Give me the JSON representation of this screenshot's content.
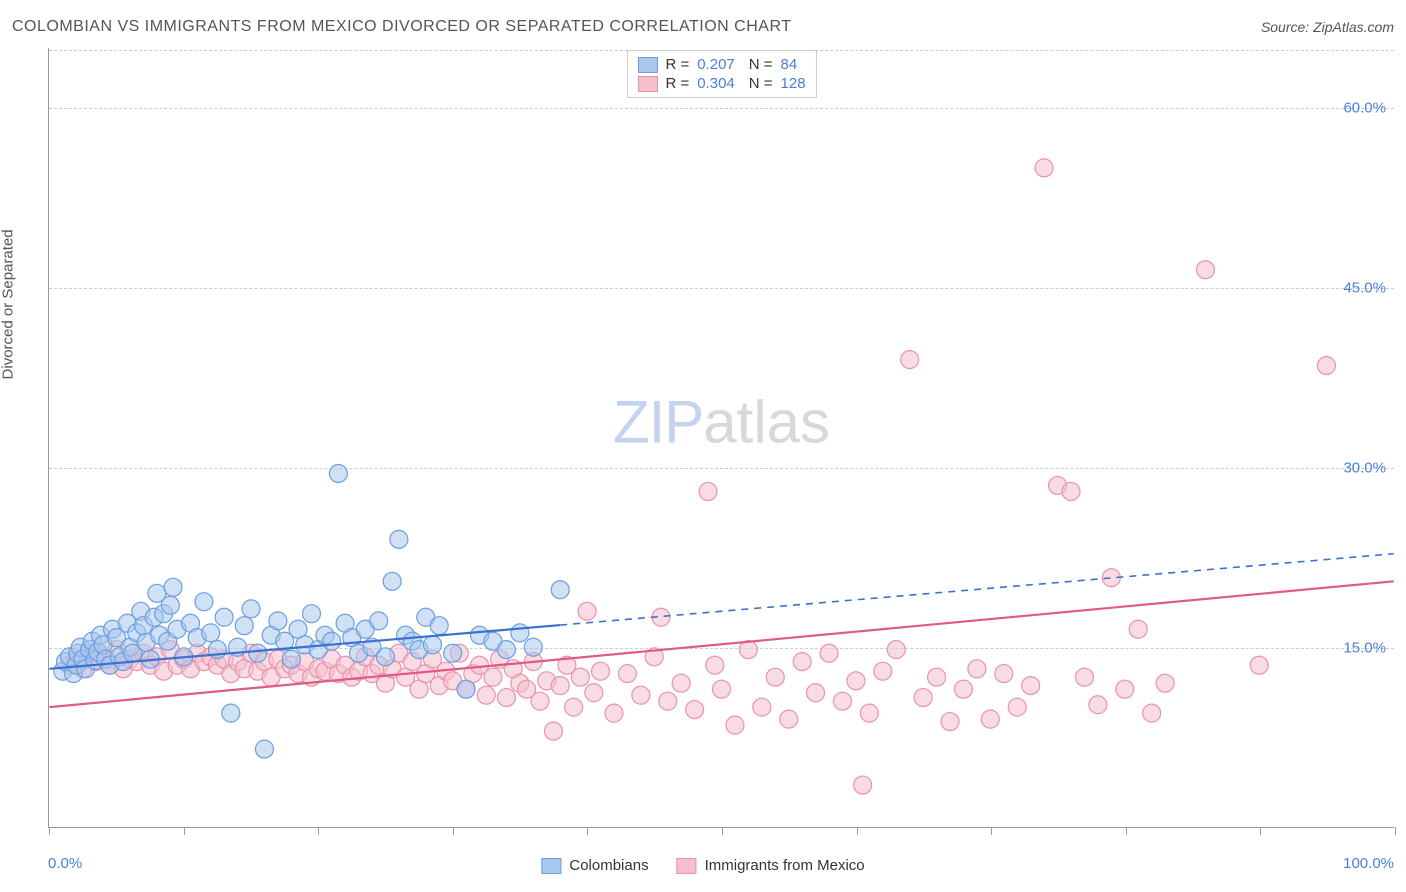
{
  "title": "COLOMBIAN VS IMMIGRANTS FROM MEXICO DIVORCED OR SEPARATED CORRELATION CHART",
  "source_label": "Source: ZipAtlas.com",
  "ylabel": "Divorced or Separated",
  "watermark_zip": "ZIP",
  "watermark_atlas": "atlas",
  "chart": {
    "type": "scatter",
    "xlim": [
      0,
      100
    ],
    "ylim": [
      0,
      65
    ],
    "xticks": [
      0,
      10,
      20,
      30,
      40,
      50,
      60,
      70,
      80,
      90,
      100
    ],
    "yticks": [
      15,
      30,
      45,
      60
    ],
    "ytick_labels": [
      "15.0%",
      "30.0%",
      "45.0%",
      "60.0%"
    ],
    "xaxis_left_label": "0.0%",
    "xaxis_right_label": "100.0%",
    "grid_color": "#cccccc",
    "axis_color": "#999999",
    "background_color": "#ffffff"
  },
  "series": {
    "colombians": {
      "label": "Colombians",
      "marker_fill": "#a9c6ec",
      "marker_stroke": "#6a9fe0",
      "marker_fill_opacity": 0.55,
      "marker_radius": 9,
      "line_color": "#3b6fd0",
      "line_width": 2.2,
      "line_solid_xmax": 38,
      "trend_start_y": 13.2,
      "trend_end_y": 22.8,
      "R": "0.207",
      "N": "84",
      "points": [
        [
          1.0,
          13.0
        ],
        [
          1.2,
          13.8
        ],
        [
          1.5,
          14.2
        ],
        [
          1.8,
          12.8
        ],
        [
          2.0,
          13.5
        ],
        [
          2.1,
          14.5
        ],
        [
          2.3,
          15.0
        ],
        [
          2.5,
          14.0
        ],
        [
          2.7,
          13.2
        ],
        [
          3.0,
          14.8
        ],
        [
          3.2,
          15.5
        ],
        [
          3.4,
          13.9
        ],
        [
          3.6,
          14.6
        ],
        [
          3.8,
          16.0
        ],
        [
          4.0,
          15.2
        ],
        [
          4.2,
          14.0
        ],
        [
          4.5,
          13.5
        ],
        [
          4.7,
          16.5
        ],
        [
          5.0,
          15.8
        ],
        [
          5.2,
          14.2
        ],
        [
          5.5,
          13.8
        ],
        [
          5.8,
          17.0
        ],
        [
          6.0,
          15.0
        ],
        [
          6.2,
          14.5
        ],
        [
          6.5,
          16.2
        ],
        [
          6.8,
          18.0
        ],
        [
          7.0,
          16.8
        ],
        [
          7.2,
          15.4
        ],
        [
          7.5,
          14.0
        ],
        [
          7.8,
          17.5
        ],
        [
          8.0,
          19.5
        ],
        [
          8.2,
          16.0
        ],
        [
          8.5,
          17.8
        ],
        [
          8.8,
          15.5
        ],
        [
          9.0,
          18.5
        ],
        [
          9.2,
          20.0
        ],
        [
          9.5,
          16.5
        ],
        [
          10.0,
          14.2
        ],
        [
          10.5,
          17.0
        ],
        [
          11.0,
          15.8
        ],
        [
          11.5,
          18.8
        ],
        [
          12.0,
          16.2
        ],
        [
          12.5,
          14.8
        ],
        [
          13.0,
          17.5
        ],
        [
          13.5,
          9.5
        ],
        [
          14.0,
          15.0
        ],
        [
          14.5,
          16.8
        ],
        [
          15.0,
          18.2
        ],
        [
          15.5,
          14.5
        ],
        [
          16.0,
          6.5
        ],
        [
          16.5,
          16.0
        ],
        [
          17.0,
          17.2
        ],
        [
          17.5,
          15.5
        ],
        [
          18.0,
          14.0
        ],
        [
          18.5,
          16.5
        ],
        [
          19.0,
          15.2
        ],
        [
          19.5,
          17.8
        ],
        [
          20.0,
          14.8
        ],
        [
          20.5,
          16.0
        ],
        [
          21.0,
          15.5
        ],
        [
          21.5,
          29.5
        ],
        [
          22.0,
          17.0
        ],
        [
          22.5,
          15.8
        ],
        [
          23.0,
          14.5
        ],
        [
          23.5,
          16.5
        ],
        [
          24.0,
          15.0
        ],
        [
          24.5,
          17.2
        ],
        [
          25.0,
          14.2
        ],
        [
          25.5,
          20.5
        ],
        [
          26.0,
          24.0
        ],
        [
          26.5,
          16.0
        ],
        [
          27.0,
          15.5
        ],
        [
          27.5,
          14.8
        ],
        [
          28.0,
          17.5
        ],
        [
          28.5,
          15.2
        ],
        [
          29.0,
          16.8
        ],
        [
          30.0,
          14.5
        ],
        [
          31.0,
          11.5
        ],
        [
          32.0,
          16.0
        ],
        [
          33.0,
          15.5
        ],
        [
          34.0,
          14.8
        ],
        [
          35.0,
          16.2
        ],
        [
          36.0,
          15.0
        ],
        [
          38.0,
          19.8
        ]
      ]
    },
    "mexico": {
      "label": "Immigrants from Mexico",
      "marker_fill": "#f4c0cc",
      "marker_stroke": "#e892ab",
      "marker_fill_opacity": 0.55,
      "marker_radius": 9,
      "line_color": "#e05a85",
      "line_width": 2.2,
      "trend_start_y": 10.0,
      "trend_end_y": 20.5,
      "R": "0.304",
      "N": "128",
      "points": [
        [
          1.5,
          13.5
        ],
        [
          2.0,
          14.0
        ],
        [
          2.5,
          13.2
        ],
        [
          3.0,
          14.5
        ],
        [
          3.5,
          13.8
        ],
        [
          4.0,
          14.2
        ],
        [
          4.5,
          13.5
        ],
        [
          5.0,
          14.8
        ],
        [
          5.5,
          13.2
        ],
        [
          6.0,
          14.0
        ],
        [
          6.5,
          13.8
        ],
        [
          7.0,
          14.5
        ],
        [
          7.5,
          13.5
        ],
        [
          8.0,
          14.2
        ],
        [
          8.5,
          13.0
        ],
        [
          9.0,
          14.8
        ],
        [
          9.5,
          13.5
        ],
        [
          10.0,
          14.0
        ],
        [
          10.5,
          13.2
        ],
        [
          11.0,
          14.5
        ],
        [
          11.5,
          13.8
        ],
        [
          12.0,
          14.2
        ],
        [
          12.5,
          13.5
        ],
        [
          13.0,
          14.0
        ],
        [
          13.5,
          12.8
        ],
        [
          14.0,
          13.8
        ],
        [
          14.5,
          13.2
        ],
        [
          15.0,
          14.5
        ],
        [
          15.5,
          13.0
        ],
        [
          16.0,
          13.8
        ],
        [
          16.5,
          12.5
        ],
        [
          17.0,
          14.0
        ],
        [
          17.5,
          13.2
        ],
        [
          18.0,
          13.5
        ],
        [
          18.5,
          12.8
        ],
        [
          19.0,
          13.8
        ],
        [
          19.5,
          12.5
        ],
        [
          20.0,
          13.2
        ],
        [
          20.5,
          13.0
        ],
        [
          21.0,
          14.0
        ],
        [
          21.5,
          12.8
        ],
        [
          22.0,
          13.5
        ],
        [
          22.5,
          12.5
        ],
        [
          23.0,
          13.0
        ],
        [
          23.5,
          14.2
        ],
        [
          24.0,
          12.8
        ],
        [
          24.5,
          13.5
        ],
        [
          25.0,
          12.0
        ],
        [
          25.5,
          13.2
        ],
        [
          26.0,
          14.5
        ],
        [
          26.5,
          12.5
        ],
        [
          27.0,
          13.8
        ],
        [
          27.5,
          11.5
        ],
        [
          28.0,
          12.8
        ],
        [
          28.5,
          14.0
        ],
        [
          29.0,
          11.8
        ],
        [
          29.5,
          13.0
        ],
        [
          30.0,
          12.2
        ],
        [
          30.5,
          14.5
        ],
        [
          31.0,
          11.5
        ],
        [
          31.5,
          12.8
        ],
        [
          32.0,
          13.5
        ],
        [
          32.5,
          11.0
        ],
        [
          33.0,
          12.5
        ],
        [
          33.5,
          14.0
        ],
        [
          34.0,
          10.8
        ],
        [
          34.5,
          13.2
        ],
        [
          35.0,
          12.0
        ],
        [
          35.5,
          11.5
        ],
        [
          36.0,
          13.8
        ],
        [
          36.5,
          10.5
        ],
        [
          37.0,
          12.2
        ],
        [
          37.5,
          8.0
        ],
        [
          38.0,
          11.8
        ],
        [
          38.5,
          13.5
        ],
        [
          39.0,
          10.0
        ],
        [
          39.5,
          12.5
        ],
        [
          40.0,
          18.0
        ],
        [
          40.5,
          11.2
        ],
        [
          41.0,
          13.0
        ],
        [
          42.0,
          9.5
        ],
        [
          43.0,
          12.8
        ],
        [
          44.0,
          11.0
        ],
        [
          45.0,
          14.2
        ],
        [
          45.5,
          17.5
        ],
        [
          46.0,
          10.5
        ],
        [
          47.0,
          12.0
        ],
        [
          48.0,
          9.8
        ],
        [
          49.0,
          28.0
        ],
        [
          49.5,
          13.5
        ],
        [
          50.0,
          11.5
        ],
        [
          51.0,
          8.5
        ],
        [
          52.0,
          14.8
        ],
        [
          53.0,
          10.0
        ],
        [
          54.0,
          12.5
        ],
        [
          55.0,
          9.0
        ],
        [
          56.0,
          13.8
        ],
        [
          57.0,
          11.2
        ],
        [
          58.0,
          14.5
        ],
        [
          59.0,
          10.5
        ],
        [
          60.0,
          12.2
        ],
        [
          61.0,
          9.5
        ],
        [
          62.0,
          13.0
        ],
        [
          63.0,
          14.8
        ],
        [
          64.0,
          39.0
        ],
        [
          65.0,
          10.8
        ],
        [
          66.0,
          12.5
        ],
        [
          67.0,
          8.8
        ],
        [
          68.0,
          11.5
        ],
        [
          69.0,
          13.2
        ],
        [
          70.0,
          9.0
        ],
        [
          71.0,
          12.8
        ],
        [
          72.0,
          10.0
        ],
        [
          73.0,
          11.8
        ],
        [
          74.0,
          55.0
        ],
        [
          75.0,
          28.5
        ],
        [
          76.0,
          28.0
        ],
        [
          77.0,
          12.5
        ],
        [
          78.0,
          10.2
        ],
        [
          79.0,
          20.8
        ],
        [
          80.0,
          11.5
        ],
        [
          81.0,
          16.5
        ],
        [
          82.0,
          9.5
        ],
        [
          83.0,
          12.0
        ],
        [
          86.0,
          46.5
        ],
        [
          90.0,
          13.5
        ],
        [
          95.0,
          38.5
        ],
        [
          60.5,
          3.5
        ]
      ]
    }
  },
  "legend_top": {
    "r_label": "R =",
    "n_label": "N ="
  }
}
